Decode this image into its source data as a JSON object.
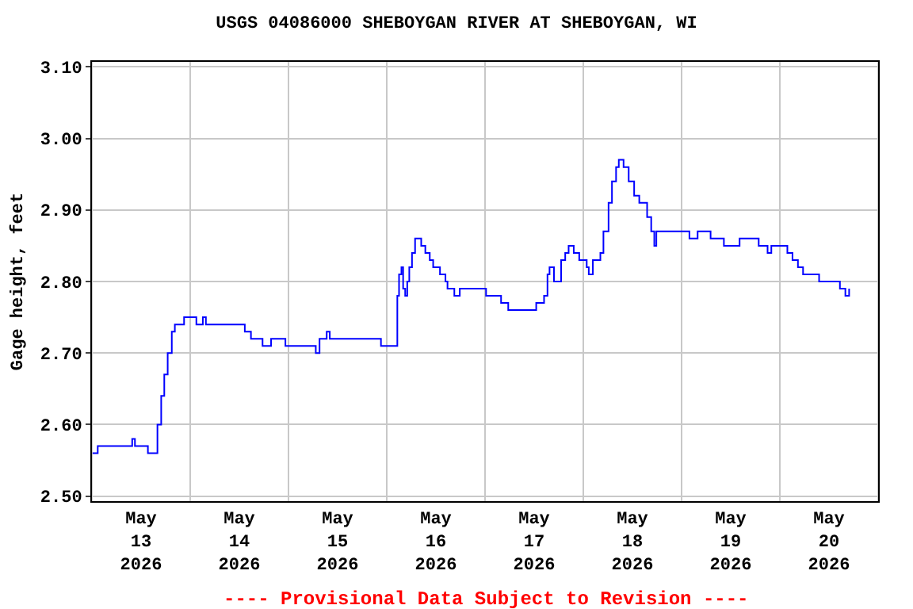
{
  "chart_data": {
    "type": "step",
    "title": "USGS 04086000 SHEBOYGAN RIVER AT SHEBOYGAN, WI",
    "ylabel": "Gage height, feet",
    "annotations": [
      "---- Provisional Data Subject to Revision ----"
    ],
    "x": [
      "2026-05-12T12:10",
      "2026-05-12T13:25",
      "2026-05-12T21:50",
      "2026-05-12T22:30",
      "2026-05-13T01:40",
      "2026-05-13T03:10",
      "2026-05-13T04:00",
      "2026-05-13T04:55",
      "2026-05-13T05:40",
      "2026-05-13T06:30",
      "2026-05-13T07:30",
      "2026-05-13T08:15",
      "2026-05-13T10:30",
      "2026-05-13T12:00",
      "2026-05-13T13:30",
      "2026-05-13T15:05",
      "2026-05-13T15:50",
      "2026-05-14T00:30",
      "2026-05-14T01:20",
      "2026-05-14T02:50",
      "2026-05-14T05:40",
      "2026-05-14T07:45",
      "2026-05-14T10:05",
      "2026-05-14T11:15",
      "2026-05-14T18:40",
      "2026-05-14T19:35",
      "2026-05-14T21:20",
      "2026-05-14T22:05",
      "2026-05-15T10:05",
      "2026-05-15T10:35",
      "2026-05-15T14:10",
      "2026-05-15T14:35",
      "2026-05-15T15:00",
      "2026-05-15T15:35",
      "2026-05-15T16:00",
      "2026-05-15T16:30",
      "2026-05-15T17:00",
      "2026-05-15T17:30",
      "2026-05-15T18:10",
      "2026-05-15T18:55",
      "2026-05-15T20:05",
      "2026-05-15T20:25",
      "2026-05-15T21:25",
      "2026-05-15T22:30",
      "2026-05-15T23:20",
      "2026-05-16T01:00",
      "2026-05-16T02:20",
      "2026-05-16T02:50",
      "2026-05-16T04:30",
      "2026-05-16T05:50",
      "2026-05-16T11:35",
      "2026-05-16T12:15",
      "2026-05-16T12:55",
      "2026-05-16T15:55",
      "2026-05-16T17:40",
      "2026-05-17T00:30",
      "2026-05-17T02:25",
      "2026-05-17T03:15",
      "2026-05-17T03:45",
      "2026-05-17T04:50",
      "2026-05-17T05:55",
      "2026-05-17T06:35",
      "2026-05-17T07:35",
      "2026-05-17T08:25",
      "2026-05-17T09:40",
      "2026-05-17T11:00",
      "2026-05-17T12:50",
      "2026-05-17T13:20",
      "2026-05-17T14:20",
      "2026-05-17T16:10",
      "2026-05-17T16:55",
      "2026-05-17T18:10",
      "2026-05-17T19:00",
      "2026-05-17T20:00",
      "2026-05-17T20:40",
      "2026-05-17T21:50",
      "2026-05-17T23:05",
      "2026-05-18T00:25",
      "2026-05-18T01:40",
      "2026-05-18T03:00",
      "2026-05-18T03:35",
      "2026-05-18T04:35",
      "2026-05-18T05:20",
      "2026-05-18T05:50",
      "2026-05-18T13:20",
      "2026-05-18T13:55",
      "2026-05-18T15:55",
      "2026-05-18T19:05",
      "2026-05-18T21:00",
      "2026-05-18T22:20",
      "2026-05-19T02:10",
      "2026-05-19T06:40",
      "2026-05-19T06:50",
      "2026-05-19T09:00",
      "2026-05-19T09:55",
      "2026-05-19T13:50",
      "2026-05-19T15:05",
      "2026-05-19T16:25",
      "2026-05-19T17:40",
      "2026-05-19T21:35",
      "2026-05-20T02:05",
      "2026-05-20T02:40",
      "2026-05-20T04:00",
      "2026-05-20T04:55"
    ],
    "series": [
      {
        "color": "#0000ff",
        "values": [
          2.56,
          2.57,
          2.58,
          2.57,
          2.56,
          2.56,
          2.6,
          2.64,
          2.67,
          2.7,
          2.73,
          2.74,
          2.75,
          2.75,
          2.74,
          2.75,
          2.74,
          2.74,
          2.73,
          2.72,
          2.71,
          2.72,
          2.72,
          2.71,
          2.7,
          2.72,
          2.73,
          2.72,
          2.72,
          2.71,
          2.71,
          2.78,
          2.81,
          2.82,
          2.79,
          2.78,
          2.8,
          2.82,
          2.84,
          2.86,
          2.86,
          2.85,
          2.84,
          2.83,
          2.82,
          2.81,
          2.8,
          2.79,
          2.78,
          2.79,
          2.79,
          2.78,
          2.78,
          2.77,
          2.76,
          2.77,
          2.78,
          2.81,
          2.82,
          2.8,
          2.8,
          2.83,
          2.84,
          2.85,
          2.84,
          2.83,
          2.82,
          2.81,
          2.83,
          2.84,
          2.87,
          2.91,
          2.94,
          2.96,
          2.97,
          2.96,
          2.94,
          2.92,
          2.91,
          2.91,
          2.89,
          2.87,
          2.85,
          2.87,
          2.87,
          2.86,
          2.87,
          2.86,
          2.86,
          2.85,
          2.86,
          2.86,
          2.85,
          2.84,
          2.85,
          2.84,
          2.83,
          2.82,
          2.81,
          2.8,
          2.8,
          2.79,
          2.78,
          2.79
        ]
      }
    ],
    "xlim": [
      "2026-05-12T12:00",
      "2026-05-20T12:00"
    ],
    "xticks": [
      {
        "value": "2026-05-12T12:00",
        "label": null
      },
      {
        "value": "2026-05-13",
        "label": "May\n13\n2026"
      },
      {
        "value": "2026-05-13T12:00",
        "label": null
      },
      {
        "value": "2026-05-14",
        "label": "May\n14\n2026"
      },
      {
        "value": "2026-05-14T12:00",
        "label": null
      },
      {
        "value": "2026-05-15",
        "label": "May\n15\n2026"
      },
      {
        "value": "2026-05-15T12:00",
        "label": null
      },
      {
        "value": "2026-05-16",
        "label": "May\n16\n2026"
      },
      {
        "value": "2026-05-16T12:00",
        "label": null
      },
      {
        "value": "2026-05-17",
        "label": "May\n17\n2026"
      },
      {
        "value": "2026-05-17T12:00",
        "label": null
      },
      {
        "value": "2026-05-18",
        "label": "May\n18\n2026"
      },
      {
        "value": "2026-05-18T12:00",
        "label": null
      },
      {
        "value": "2026-05-19",
        "label": "May\n19\n2026"
      },
      {
        "value": "2026-05-19T12:00",
        "label": null
      },
      {
        "value": "2026-05-20",
        "label": "May\n20\n2026"
      },
      {
        "value": "2026-05-20T12:00",
        "label": null
      }
    ],
    "ylim": [
      2.493,
      3.107
    ],
    "yticks": [
      {
        "value": 2.5,
        "label": "2.50"
      },
      {
        "value": 2.6,
        "label": "2.60"
      },
      {
        "value": 2.7,
        "label": "2.70"
      },
      {
        "value": 2.8,
        "label": "2.80"
      },
      {
        "value": 2.9,
        "label": "2.90"
      },
      {
        "value": 3.0,
        "label": "3.00"
      },
      {
        "value": 3.1,
        "label": "3.10"
      }
    ],
    "grid": true
  }
}
